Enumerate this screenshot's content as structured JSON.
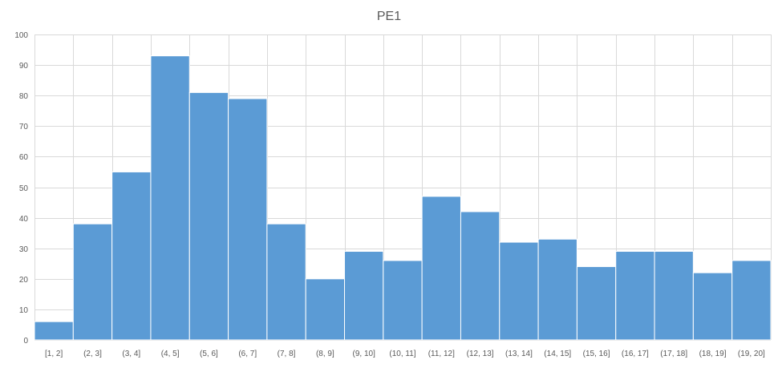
{
  "chart_data": {
    "type": "bar",
    "title": "PE1",
    "categories": [
      "[1, 2]",
      "(2, 3]",
      "(3, 4]",
      "(4, 5]",
      "(5, 6]",
      "(6, 7]",
      "(7, 8]",
      "(8, 9]",
      "(9, 10]",
      "(10, 11]",
      "(11, 12]",
      "(12, 13]",
      "(13, 14]",
      "(14, 15]",
      "(15, 16]",
      "(16, 17]",
      "(17, 18]",
      "(18, 19]",
      "(19, 20]"
    ],
    "values": [
      6,
      38,
      55,
      93,
      81,
      79,
      38,
      20,
      29,
      26,
      47,
      42,
      32,
      33,
      24,
      29,
      29,
      22,
      26
    ],
    "xlabel": "",
    "ylabel": "",
    "ylim": [
      0,
      100
    ],
    "yticks": [
      "0",
      "10",
      "20",
      "30",
      "40",
      "50",
      "60",
      "70",
      "80",
      "90",
      "100"
    ],
    "grid": true,
    "legend": "none",
    "bar_color": "#5b9bd5",
    "grid_color": "#d9d9d9",
    "text_color": "#595959"
  }
}
